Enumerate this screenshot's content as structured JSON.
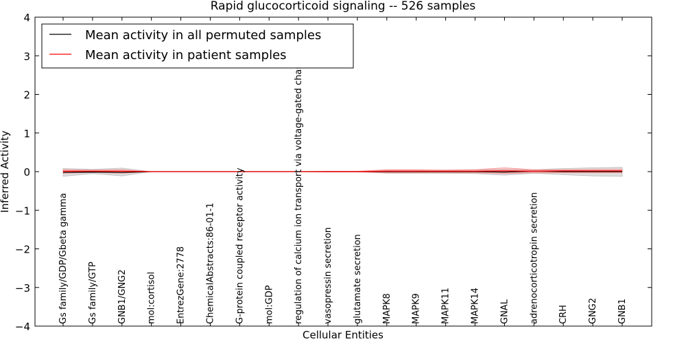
{
  "chart_data": {
    "type": "line",
    "title": "Rapid glucocorticoid signaling -- 526 samples",
    "xlabel": "Cellular Entities",
    "ylabel": "Inferred Activity",
    "ylim": [
      -4,
      4
    ],
    "yticks": [
      -4,
      -3,
      -2,
      -1,
      0,
      1,
      2,
      3,
      4
    ],
    "ytick_labels": [
      "−4",
      "−3",
      "−2",
      "−1",
      "0",
      "1",
      "2",
      "3",
      "4"
    ],
    "grid": false,
    "legend_position": "top-left",
    "categories": [
      "Gs family/GDP/Gbeta gamma",
      "Gs family/GTP",
      "GNB1/GNG2",
      "mol:cortisol",
      "EntrezGene:2778",
      "ChemicalAbstracts:86-01-1",
      "G-protein coupled receptor activity",
      "mol:GDP",
      "regulation of calcium ion transport via voltage-gated channel",
      "vasopressin secretion",
      "glutamate secretion",
      "MAPK8",
      "MAPK9",
      "MAPK11",
      "MAPK14",
      "GNAL",
      "adrenocorticotropin secretion",
      "CRH",
      "GNG2",
      "GNB1"
    ],
    "series": [
      {
        "name": "Mean activity in all permuted samples",
        "color": "#000000",
        "values": [
          -0.02,
          -0.01,
          -0.02,
          0,
          0,
          0,
          0,
          0,
          0,
          0,
          0,
          0,
          0,
          0,
          0,
          -0.01,
          0.01,
          0,
          0,
          0
        ]
      },
      {
        "name": "Mean activity in patient samples",
        "color": "#ff0000",
        "values": [
          0.01,
          0.01,
          0.01,
          0,
          0,
          0,
          0,
          0,
          0,
          0,
          0,
          0.01,
          0.01,
          0.01,
          0.01,
          0.02,
          0.01,
          0.02,
          0.02,
          0.02
        ]
      }
    ],
    "bands": [
      {
        "name": "permuted-range",
        "color": "#b0b0b0",
        "lower": [
          -0.12,
          -0.05,
          -0.11,
          0,
          0,
          0,
          0,
          0,
          0,
          0,
          0,
          -0.04,
          -0.04,
          -0.04,
          -0.05,
          -0.09,
          -0.04,
          -0.08,
          -0.11,
          -0.12
        ],
        "upper": [
          0.08,
          0.06,
          0.09,
          0,
          0,
          0,
          0,
          0,
          0,
          0,
          0,
          0.04,
          0.04,
          0.04,
          0.05,
          0.06,
          0.05,
          0.08,
          0.1,
          0.11
        ]
      },
      {
        "name": "patient-range",
        "color": "#ff8080",
        "lower": [
          -0.04,
          -0.02,
          -0.04,
          0,
          0,
          0,
          0,
          0,
          0,
          -0.01,
          -0.01,
          -0.03,
          -0.03,
          -0.03,
          -0.03,
          -0.05,
          -0.03,
          -0.03,
          -0.03,
          -0.03
        ],
        "upper": [
          0.05,
          0.04,
          0.05,
          0,
          0,
          0,
          0,
          0,
          0,
          0.01,
          0.01,
          0.05,
          0.05,
          0.04,
          0.05,
          0.1,
          0.05,
          0.05,
          0.06,
          0.06
        ]
      }
    ]
  }
}
